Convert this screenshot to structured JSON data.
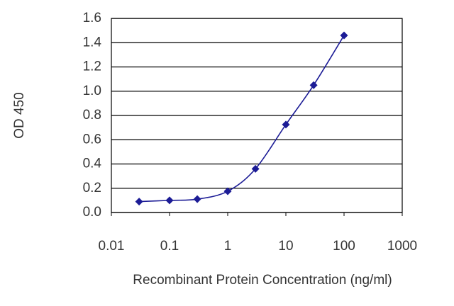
{
  "chart_data": {
    "type": "scatter-line",
    "x_label": "Recombinant Protein Concentration (ng/ml)",
    "y_label": "OD 450",
    "xscale": "log",
    "x": [
      0.03,
      0.1,
      0.3,
      1,
      3,
      10,
      30,
      100
    ],
    "series": [
      {
        "color": "#1c1c96",
        "values": [
          0.09,
          0.1,
          0.11,
          0.175,
          0.36,
          0.725,
          1.05,
          1.46
        ]
      }
    ],
    "xlim": [
      0.01,
      1000
    ],
    "xticks": [
      0.01,
      0.1,
      1,
      10,
      100,
      1000
    ],
    "ylim": [
      0,
      1.6
    ],
    "yticks": [
      {
        "value": 0,
        "label": "0.0"
      },
      0.2,
      0.4,
      0.6,
      0.8,
      {
        "value": 1,
        "label": "1.0"
      },
      1.2,
      1.4,
      1.6
    ],
    "grid": true
  }
}
